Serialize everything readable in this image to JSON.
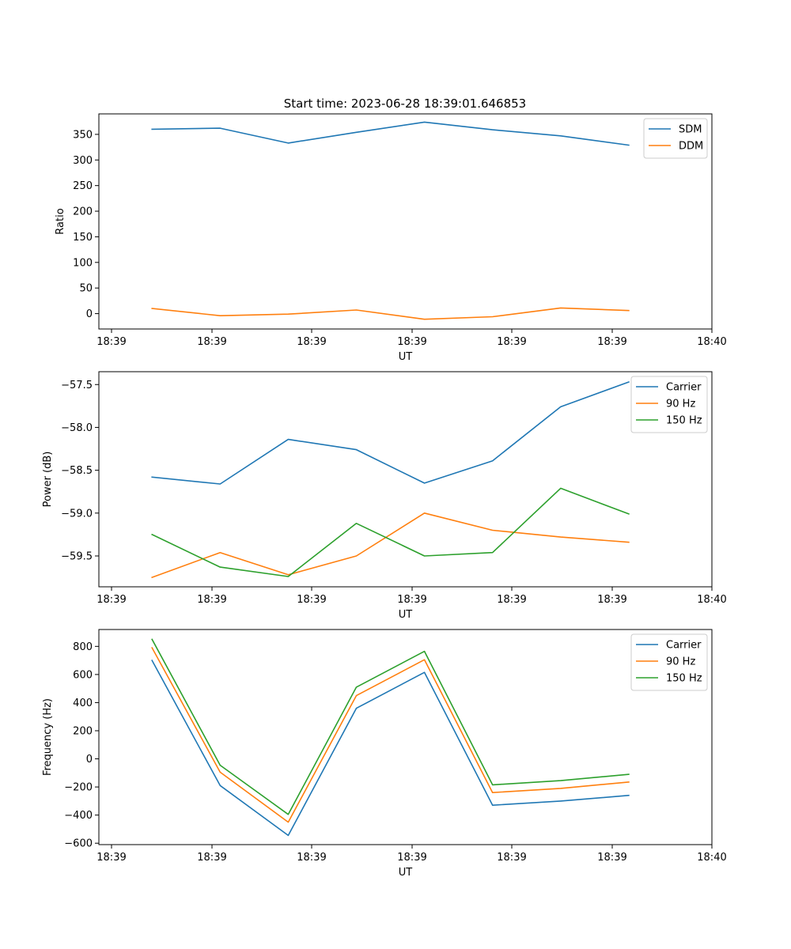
{
  "figure": {
    "title": "Start time: 2023-06-28 18:39:01.646853"
  },
  "chart_data": [
    {
      "type": "line",
      "title": "Start time: 2023-06-28 18:39:01.646853",
      "xlabel": "UT",
      "ylabel": "Ratio",
      "x_tick_labels": [
        "18:39",
        "18:39",
        "18:39",
        "18:39",
        "18:39",
        "18:39",
        "18:40"
      ],
      "y_ticks": [
        0,
        50,
        100,
        150,
        200,
        250,
        300,
        350
      ],
      "ylim": [
        -30,
        390
      ],
      "grid": false,
      "legend_position": "top-right",
      "x": [
        1,
        2,
        3,
        4,
        5,
        6,
        7,
        8
      ],
      "xlim": [
        0.22,
        9.22
      ],
      "series": [
        {
          "name": "SDM",
          "color": "#1f77b4",
          "values": [
            360,
            362,
            333,
            354,
            374,
            359,
            347,
            329
          ]
        },
        {
          "name": "DDM",
          "color": "#ff7f0e",
          "values": [
            10,
            -4,
            -1,
            7,
            -11,
            -6,
            11,
            6
          ]
        }
      ]
    },
    {
      "type": "line",
      "title": "",
      "xlabel": "UT",
      "ylabel": "Power (dB)",
      "x_tick_labels": [
        "18:39",
        "18:39",
        "18:39",
        "18:39",
        "18:39",
        "18:39",
        "18:40"
      ],
      "y_ticks": [
        -59.5,
        -59.0,
        -58.5,
        -58.0,
        -57.5
      ],
      "y_tick_labels": [
        "−59.5",
        "−59.0",
        "−58.5",
        "−58.0",
        "−57.5"
      ],
      "ylim": [
        -59.86,
        -57.35
      ],
      "grid": false,
      "legend_position": "top-right",
      "x": [
        1,
        2,
        3,
        4,
        5,
        6,
        7,
        8
      ],
      "xlim": [
        0.22,
        9.22
      ],
      "series": [
        {
          "name": "Carrier",
          "color": "#1f77b4",
          "values": [
            -58.58,
            -58.66,
            -58.14,
            -58.26,
            -58.65,
            -58.39,
            -57.76,
            -57.47
          ]
        },
        {
          "name": "90 Hz",
          "color": "#ff7f0e",
          "values": [
            -59.75,
            -59.46,
            -59.72,
            -59.5,
            -59.0,
            -59.2,
            -59.28,
            -59.34
          ]
        },
        {
          "name": "150 Hz",
          "color": "#2ca02c",
          "values": [
            -59.25,
            -59.63,
            -59.74,
            -59.12,
            -59.5,
            -59.46,
            -58.71,
            -59.01
          ]
        }
      ]
    },
    {
      "type": "line",
      "title": "",
      "xlabel": "UT",
      "ylabel": "Frequency (Hz)",
      "x_tick_labels": [
        "18:39",
        "18:39",
        "18:39",
        "18:39",
        "18:39",
        "18:39",
        "18:40"
      ],
      "y_ticks": [
        -600,
        -400,
        -200,
        0,
        200,
        400,
        600,
        800
      ],
      "y_tick_labels": [
        "−600",
        "−400",
        "−200",
        "0",
        "200",
        "400",
        "600",
        "800"
      ],
      "ylim": [
        -610,
        920
      ],
      "grid": false,
      "legend_position": "top-right",
      "x": [
        1,
        2,
        3,
        4,
        5,
        6,
        7,
        8
      ],
      "xlim": [
        0.22,
        9.22
      ],
      "series": [
        {
          "name": "Carrier",
          "color": "#1f77b4",
          "values": [
            700,
            -190,
            -545,
            360,
            615,
            -330,
            -300,
            -260
          ]
        },
        {
          "name": "90 Hz",
          "color": "#ff7f0e",
          "values": [
            790,
            -95,
            -450,
            450,
            705,
            -240,
            -210,
            -165
          ]
        },
        {
          "name": "150 Hz",
          "color": "#2ca02c",
          "values": [
            850,
            -45,
            -395,
            510,
            765,
            -185,
            -155,
            -110
          ]
        }
      ]
    }
  ]
}
